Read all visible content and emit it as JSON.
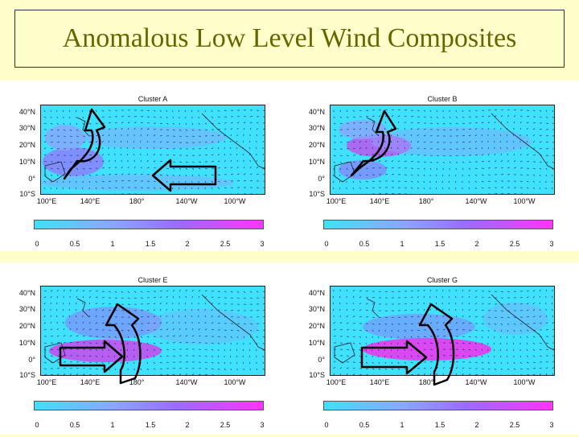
{
  "slide": {
    "title": "Anomalous Low Level Wind Composites"
  },
  "panels": [
    {
      "id": "a",
      "title": "Cluster A"
    },
    {
      "id": "b",
      "title": "Cluster B"
    },
    {
      "id": "e",
      "title": "Cluster E"
    },
    {
      "id": "g",
      "title": "Cluster G"
    }
  ],
  "axes": {
    "lat_labels": [
      "40°N",
      "30°N",
      "20°N",
      "10°N",
      "0°",
      "10°S"
    ],
    "lon_labels": [
      "100°E",
      "140°E",
      "180°",
      "140°W",
      "100°W"
    ]
  },
  "colorbar": {
    "ticks": [
      "0",
      "0.5",
      "1",
      "1.5",
      "2",
      "2.5",
      "3"
    ],
    "colors": [
      "#40e0ff",
      "#8aa6ff",
      "#9a6cff",
      "#ff33ff"
    ]
  },
  "annotations": {
    "arrow_color": "#000000",
    "curved_arrow": "curved-arrow-icon",
    "block_arrow": "block-arrow-icon"
  }
}
